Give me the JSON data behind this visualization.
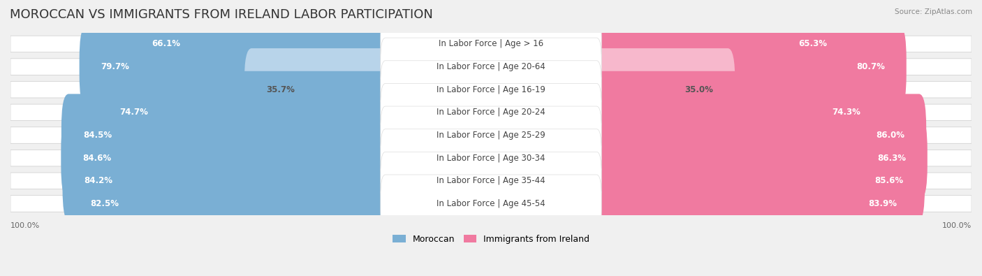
{
  "title": "MOROCCAN VS IMMIGRANTS FROM IRELAND LABOR PARTICIPATION",
  "source": "Source: ZipAtlas.com",
  "categories": [
    "In Labor Force | Age > 16",
    "In Labor Force | Age 20-64",
    "In Labor Force | Age 16-19",
    "In Labor Force | Age 20-24",
    "In Labor Force | Age 25-29",
    "In Labor Force | Age 30-34",
    "In Labor Force | Age 35-44",
    "In Labor Force | Age 45-54"
  ],
  "moroccan_values": [
    66.1,
    79.7,
    35.7,
    74.7,
    84.5,
    84.6,
    84.2,
    82.5
  ],
  "ireland_values": [
    65.3,
    80.7,
    35.0,
    74.3,
    86.0,
    86.3,
    85.6,
    83.9
  ],
  "moroccan_color": "#7aafd4",
  "moroccan_color_light": "#b8d4ea",
  "ireland_color": "#f07aa0",
  "ireland_color_light": "#f7b8cc",
  "background_color": "#f0f0f0",
  "row_bg_color": "#e8e8e8",
  "bar_row_bg": "#f5f5f5",
  "max_value": 100.0,
  "legend_moroccan": "Moroccan",
  "legend_ireland": "Immigrants from Ireland",
  "title_fontsize": 13,
  "label_fontsize": 8.5,
  "value_fontsize": 8.5
}
